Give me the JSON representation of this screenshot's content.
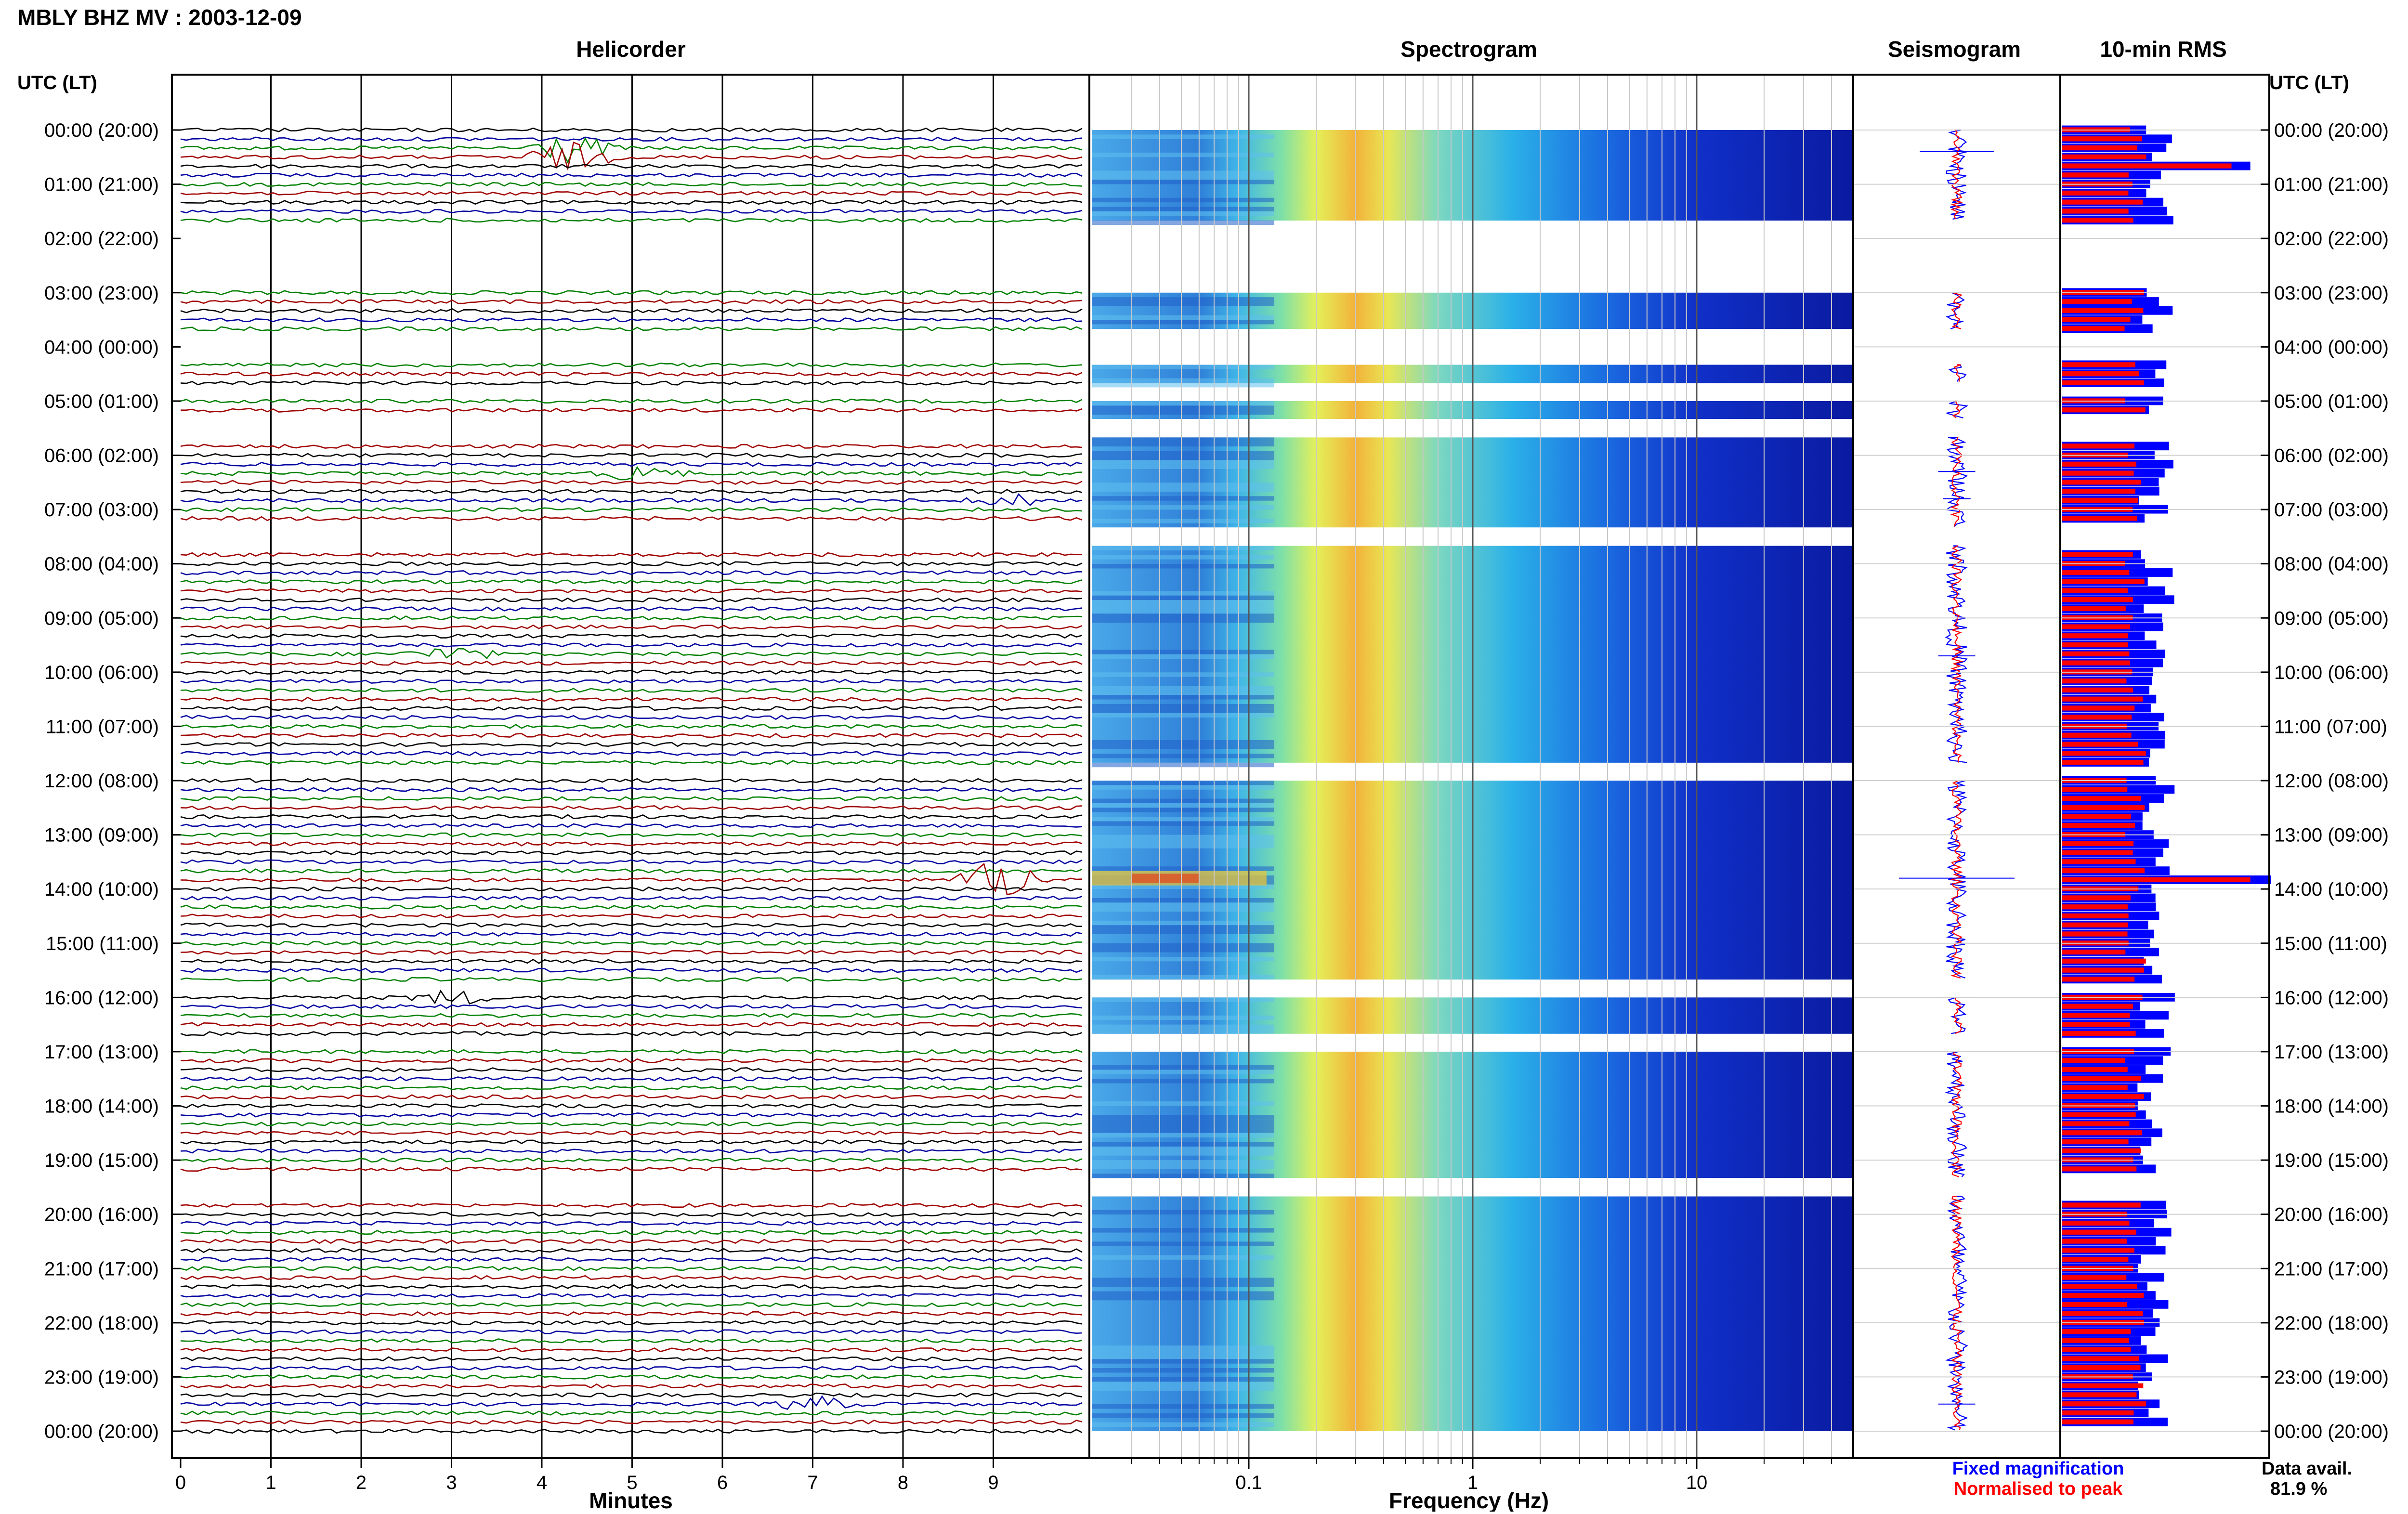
{
  "page": {
    "title": "MBLY BHZ MV : 2003-12-09"
  },
  "colors": {
    "trace_cycle": [
      "#000000",
      "#0000a0",
      "#008000",
      "#a00000"
    ],
    "fixed_magnification": "#0000ff",
    "normalised_to_peak": "#ff0000",
    "grid": "#000000"
  },
  "panels": {
    "helicorder_title": "Helicorder",
    "spectrogram_title": "Spectrogram",
    "seismogram_title": "Seismogram",
    "rms_title": "10-min RMS"
  },
  "axes": {
    "left_header": "UTC (LT)",
    "right_header": "UTC (LT)",
    "minutes_label": "Minutes",
    "frequency_label": "Frequency (Hz)",
    "minutes_ticks": [
      "0",
      "1",
      "2",
      "3",
      "4",
      "5",
      "6",
      "7",
      "8",
      "9"
    ],
    "frequency_ticks": [
      "0.1",
      "1",
      "10"
    ]
  },
  "time_labels": [
    "00:00 (20:00)",
    "01:00 (21:00)",
    "02:00 (22:00)",
    "03:00 (23:00)",
    "04:00 (00:00)",
    "05:00 (01:00)",
    "06:00 (02:00)",
    "07:00 (03:00)",
    "08:00 (04:00)",
    "09:00 (05:00)",
    "10:00 (06:00)",
    "11:00 (07:00)",
    "12:00 (08:00)",
    "13:00 (09:00)",
    "14:00 (10:00)",
    "15:00 (11:00)",
    "16:00 (12:00)",
    "17:00 (13:00)",
    "18:00 (14:00)",
    "19:00 (15:00)",
    "20:00 (16:00)",
    "21:00 (17:00)",
    "22:00 (18:00)",
    "23:00 (19:00)",
    "00:00 (20:00)"
  ],
  "legend": {
    "fixed_magnification": "Fixed magnification",
    "normalised_to_peak": "Normalised to peak"
  },
  "availability": {
    "label": "Data avail.",
    "value": "81.9 %"
  },
  "chart_data": {
    "type": "helicorder",
    "station": "MBLY BHZ MV",
    "date": "2003-12-09",
    "x_minutes_range": [
      0,
      10
    ],
    "frequency_range_hz": [
      0.02,
      50
    ],
    "frequency_scale": "log",
    "rows_per_hour": 6,
    "hours": 24,
    "data_segments_hours": [
      [
        0,
        1.67
      ],
      [
        3,
        3.67
      ],
      [
        4.33,
        4.67
      ],
      [
        5,
        5.33
      ],
      [
        5.67,
        7.33
      ],
      [
        7.67,
        11.67
      ],
      [
        12,
        15.67
      ],
      [
        16,
        16.67
      ],
      [
        17,
        19.33
      ],
      [
        19.67,
        24
      ]
    ],
    "events": [
      {
        "hour_row": 0.4,
        "minute": 4.3,
        "amplitude": 3.2
      },
      {
        "hour_row": 6.3,
        "minute": 5.1,
        "amplitude": 1.6
      },
      {
        "hour_row": 6.8,
        "minute": 9.2,
        "amplitude": 1.2
      },
      {
        "hour_row": 9.7,
        "minute": 3.0,
        "amplitude": 1.6
      },
      {
        "hour_row": 13.8,
        "minute": 9.1,
        "amplitude": 5.0
      },
      {
        "hour_row": 16.0,
        "minute": 3.0,
        "amplitude": 1.5
      },
      {
        "hour_row": 23.5,
        "minute": 7.0,
        "amplitude": 1.6
      }
    ],
    "spectrogram_peak_hz": 0.3,
    "rms_fixed_fraction": 0.45,
    "rms_normalised_fraction": 0.35,
    "rms_peaks": [
      {
        "hour": 0.6,
        "fixed": 0.9
      },
      {
        "hour": 13.8,
        "fixed": 1.0
      }
    ],
    "data_availability_percent": 81.9
  }
}
